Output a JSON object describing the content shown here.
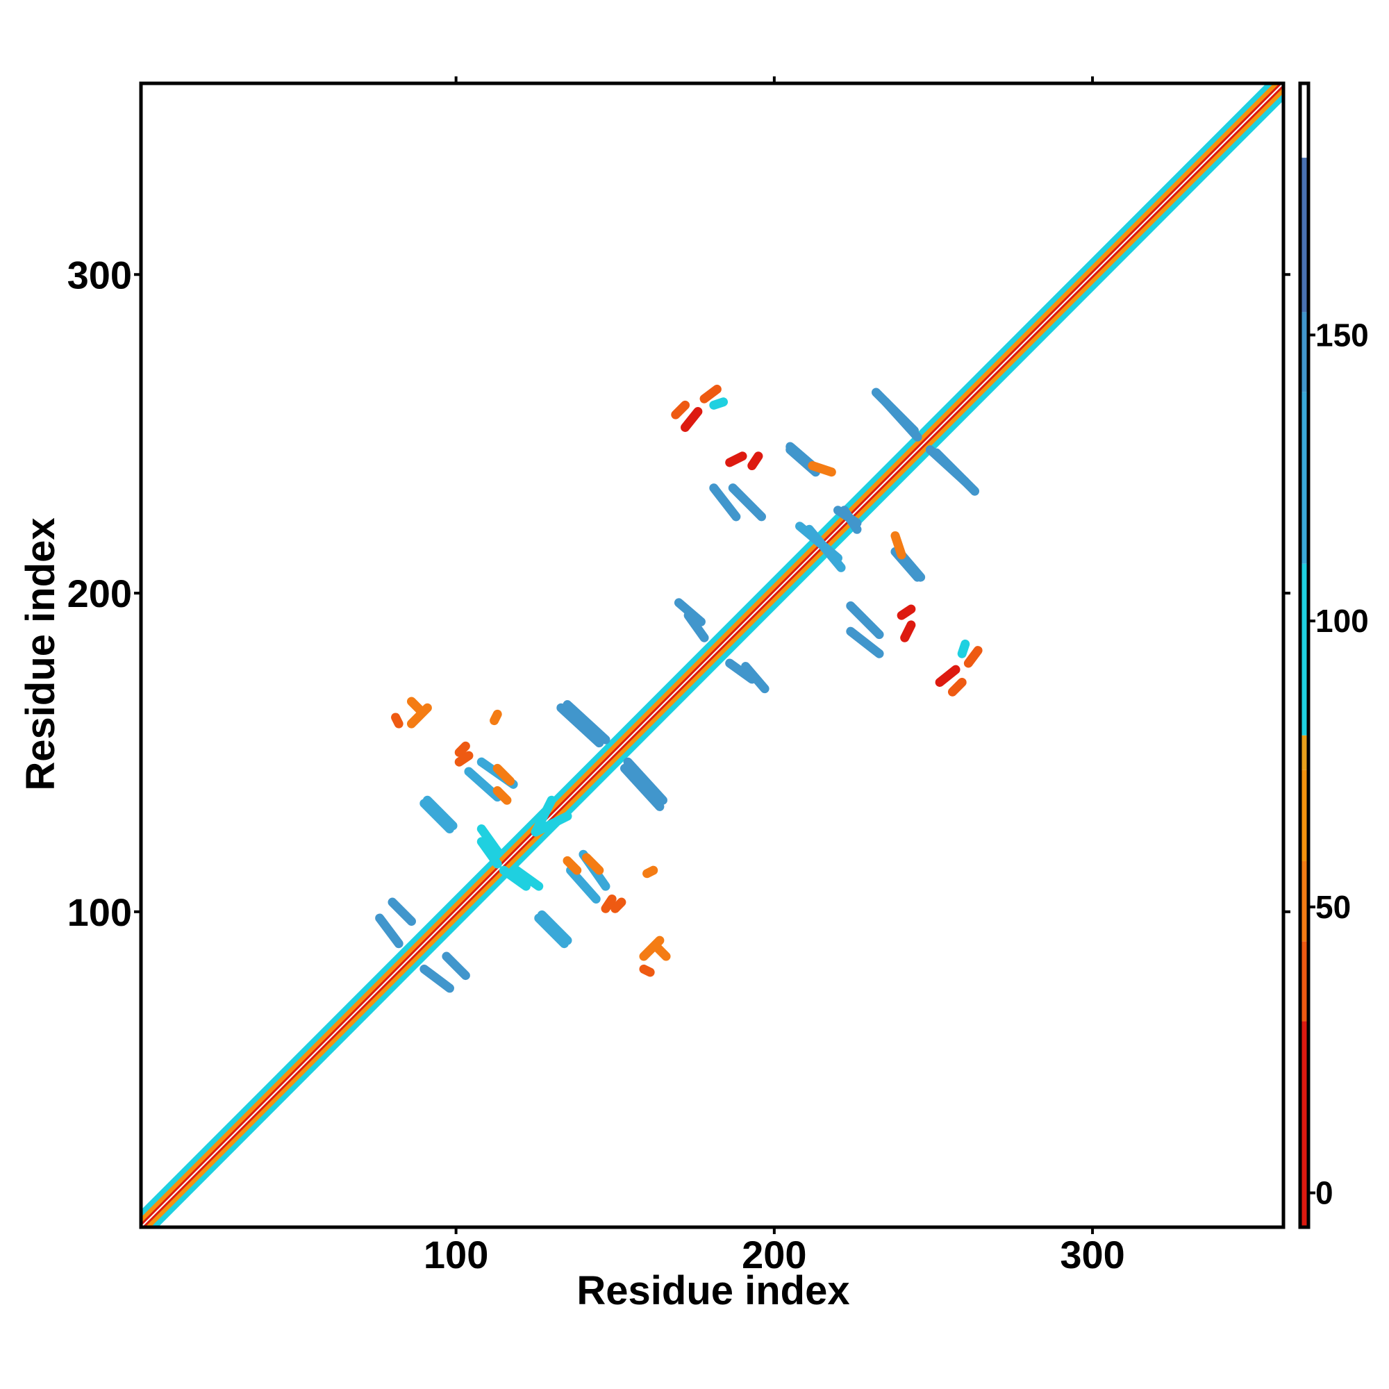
{
  "chart_data": {
    "type": "heatmap",
    "title": "",
    "xlabel": "Residue index",
    "ylabel": "Residue index",
    "xlim": [
      1,
      360
    ],
    "ylim": [
      1,
      360
    ],
    "x_ticks": [
      100,
      200,
      300
    ],
    "y_ticks": [
      100,
      200,
      300
    ],
    "grid": false,
    "colorbar": {
      "ticks": [
        0,
        50,
        100,
        150
      ],
      "range": [
        -6,
        194
      ],
      "bands": [
        {
          "from": -6,
          "to": 30,
          "color": "#dd1a10"
        },
        {
          "from": 30,
          "to": 44,
          "color": "#ee5a12"
        },
        {
          "from": 44,
          "to": 58,
          "color": "#f47c14"
        },
        {
          "from": 58,
          "to": 74,
          "color": "#f4920e"
        },
        {
          "from": 74,
          "to": 80,
          "color": "#e8a01c"
        },
        {
          "from": 80,
          "to": 110,
          "color": "#1fd0e0"
        },
        {
          "from": 110,
          "to": 140,
          "color": "#3aa8d8"
        },
        {
          "from": 140,
          "to": 154,
          "color": "#4196cc"
        },
        {
          "from": 154,
          "to": 181,
          "color": "#4a72b2"
        },
        {
          "from": 181,
          "to": 194,
          "color": "#ffffff"
        }
      ]
    },
    "diagonal": {
      "from": 1,
      "to": 360
    },
    "contact_segments": [
      {
        "x1": 90,
        "y1": 82,
        "x2": 98,
        "y2": 76,
        "value": 140
      },
      {
        "x1": 80,
        "y1": 103,
        "x2": 86,
        "y2": 97,
        "value": 140
      },
      {
        "x1": 126,
        "y1": 98,
        "x2": 134,
        "y2": 90,
        "value": 120
      },
      {
        "x1": 164,
        "y1": 91,
        "x2": 159,
        "y2": 86,
        "value": 45
      },
      {
        "x1": 119,
        "y1": 113,
        "x2": 126,
        "y2": 108,
        "value": 100
      },
      {
        "x1": 140,
        "y1": 118,
        "x2": 147,
        "y2": 108,
        "value": 120
      },
      {
        "x1": 141,
        "y1": 117,
        "x2": 145,
        "y2": 113,
        "value": 55
      },
      {
        "x1": 108,
        "y1": 122,
        "x2": 113,
        "y2": 115,
        "value": 100
      },
      {
        "x1": 91,
        "y1": 135,
        "x2": 99,
        "y2": 127,
        "value": 110
      },
      {
        "x1": 104,
        "y1": 144,
        "x2": 113,
        "y2": 136,
        "value": 110
      },
      {
        "x1": 113,
        "y1": 138,
        "x2": 116,
        "y2": 135,
        "value": 55
      },
      {
        "x1": 153,
        "y1": 145,
        "x2": 164,
        "y2": 133,
        "value": 140
      },
      {
        "x1": 135,
        "y1": 165,
        "x2": 147,
        "y2": 154,
        "value": 140
      },
      {
        "x1": 86,
        "y1": 166,
        "x2": 89,
        "y2": 163,
        "value": 45
      },
      {
        "x1": 81,
        "y1": 161,
        "x2": 82,
        "y2": 159,
        "value": 40
      },
      {
        "x1": 170,
        "y1": 197,
        "x2": 177,
        "y2": 191,
        "value": 140
      },
      {
        "x1": 186,
        "y1": 178,
        "x2": 193,
        "y2": 173,
        "value": 140
      },
      {
        "x1": 181,
        "y1": 233,
        "x2": 188,
        "y2": 224,
        "value": 140
      },
      {
        "x1": 205,
        "y1": 246,
        "x2": 212,
        "y2": 240,
        "value": 140
      },
      {
        "x1": 211,
        "y1": 220,
        "x2": 221,
        "y2": 208,
        "value": 120
      },
      {
        "x1": 222,
        "y1": 226,
        "x2": 226,
        "y2": 220,
        "value": 140
      },
      {
        "x1": 238,
        "y1": 213,
        "x2": 245,
        "y2": 205,
        "value": 140
      },
      {
        "x1": 224,
        "y1": 196,
        "x2": 233,
        "y2": 187,
        "value": 140
      },
      {
        "x1": 232,
        "y1": 263,
        "x2": 244,
        "y2": 251,
        "value": 140
      },
      {
        "x1": 249,
        "y1": 245,
        "x2": 260,
        "y2": 235,
        "value": 140
      },
      {
        "x1": 169,
        "y1": 256,
        "x2": 172,
        "y2": 259,
        "value": 30
      },
      {
        "x1": 178,
        "y1": 261,
        "x2": 182,
        "y2": 264,
        "value": 40
      },
      {
        "x1": 186,
        "y1": 241,
        "x2": 190,
        "y2": 243,
        "value": 20
      },
      {
        "x1": 252,
        "y1": 172,
        "x2": 257,
        "y2": 176,
        "value": 20
      },
      {
        "x1": 259,
        "y1": 181,
        "x2": 260,
        "y2": 184,
        "value": 100
      },
      {
        "x1": 240,
        "y1": 193,
        "x2": 243,
        "y2": 195,
        "value": 20
      },
      {
        "x1": 238,
        "y1": 218,
        "x2": 240,
        "y2": 212,
        "value": 50
      },
      {
        "x1": 160,
        "y1": 112,
        "x2": 162,
        "y2": 113,
        "value": 55
      },
      {
        "x1": 150,
        "y1": 101,
        "x2": 152,
        "y2": 103,
        "value": 40
      },
      {
        "x1": 101,
        "y1": 147,
        "x2": 104,
        "y2": 149,
        "value": 40
      },
      {
        "x1": 125,
        "y1": 125,
        "x2": 130,
        "y2": 135,
        "value": 100
      }
    ]
  }
}
